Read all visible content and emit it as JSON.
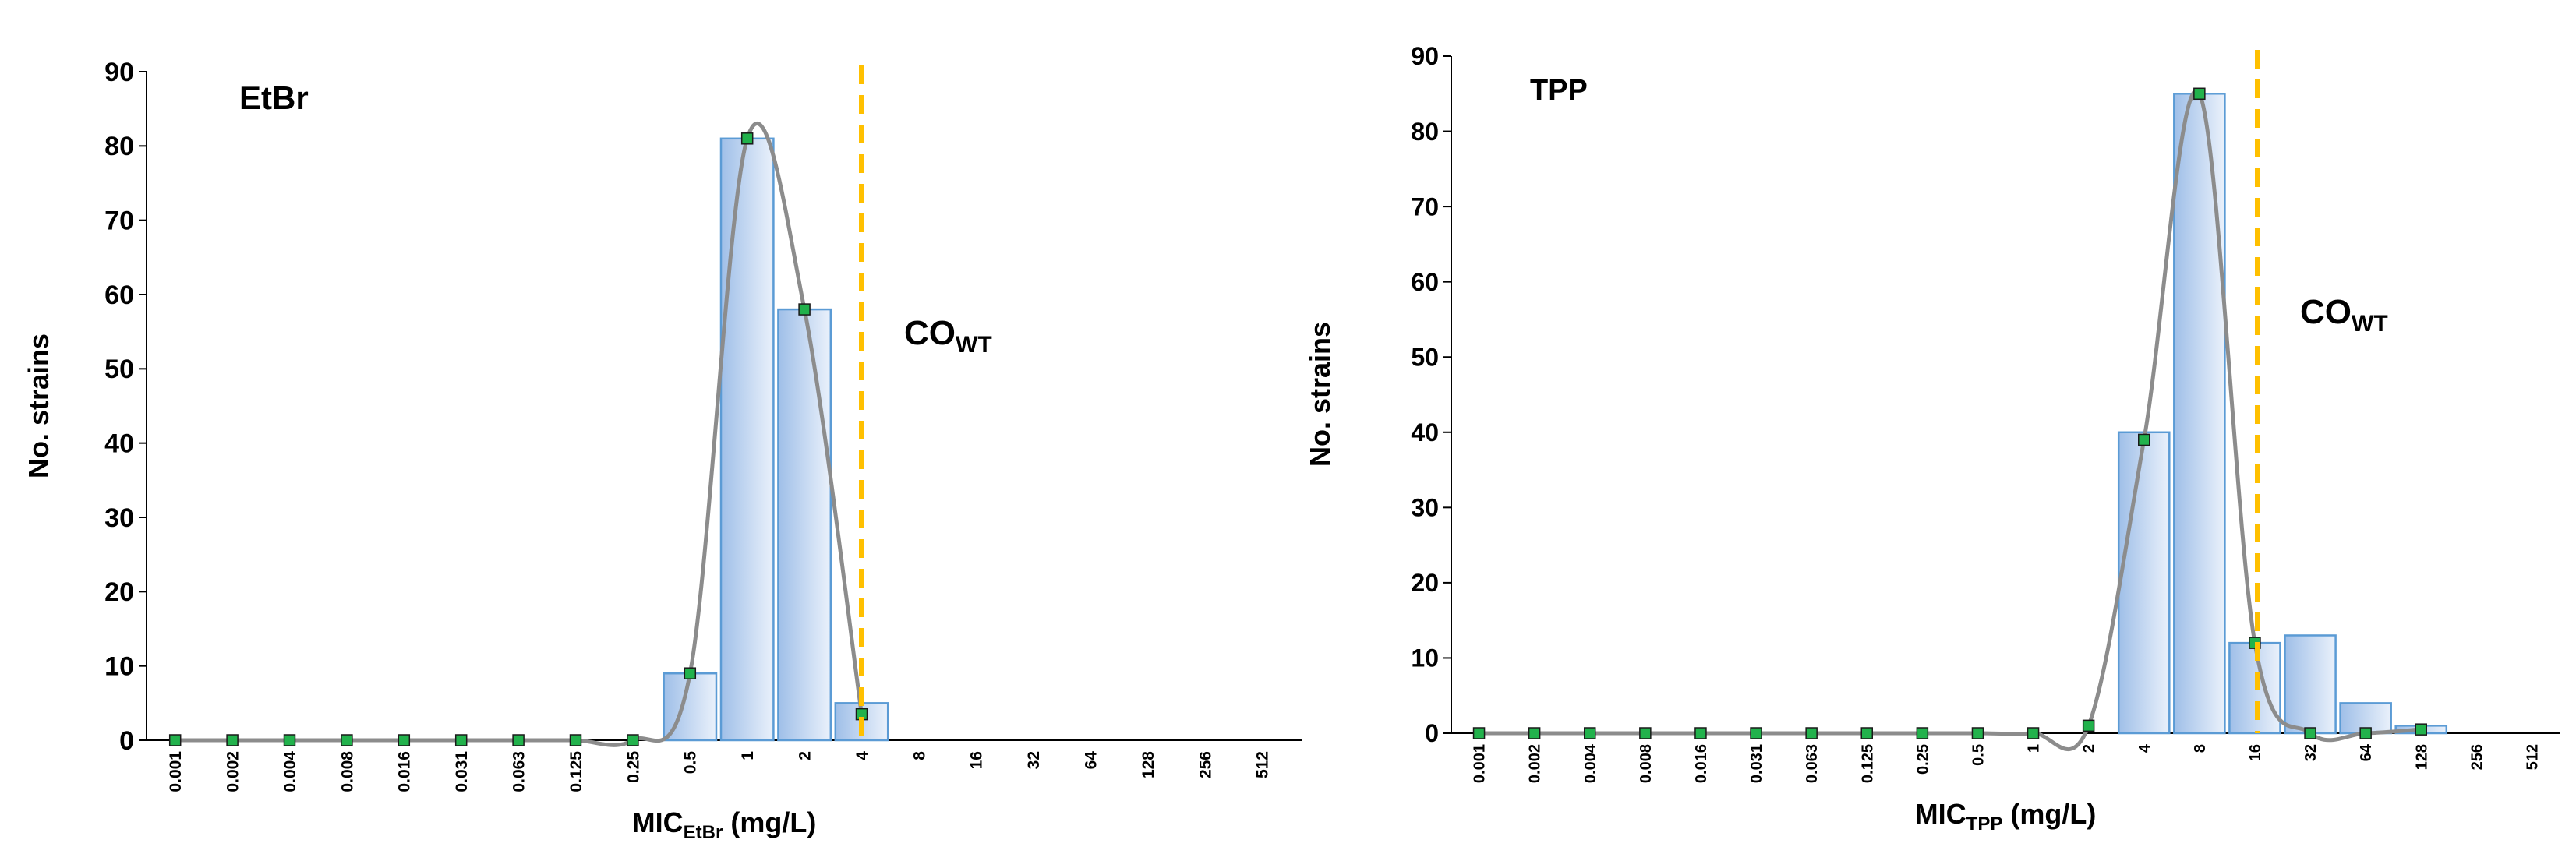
{
  "chart_data": [
    {
      "type": "bar",
      "title": "EtBr",
      "xlabel_main": "MIC",
      "xlabel_sub": "EtBr",
      "xlabel_tail": " (mg/L)",
      "ylabel": "No. strains",
      "ylim": [
        0,
        90
      ],
      "yticks": [
        0,
        10,
        20,
        30,
        40,
        50,
        60,
        70,
        80,
        90
      ],
      "categories": [
        "0.001",
        "0.002",
        "0.004",
        "0.008",
        "0.016",
        "0.031",
        "0.063",
        "0.125",
        "0.25",
        "0.5",
        "1",
        "2",
        "4",
        "8",
        "16",
        "32",
        "64",
        "128",
        "256",
        "512"
      ],
      "series": [
        {
          "name": "No. strains",
          "values": [
            0,
            0,
            0,
            0,
            0,
            0,
            0,
            0,
            0,
            9,
            81,
            58,
            5,
            0,
            0,
            0,
            0,
            0,
            0,
            0
          ]
        },
        {
          "name": "Fitted distribution",
          "values": [
            0,
            0,
            0,
            0,
            0,
            0,
            0,
            0,
            0,
            9,
            81,
            58,
            3.5,
            null,
            null,
            null,
            null,
            null,
            null,
            null
          ]
        }
      ],
      "cutoff": {
        "label_main": "CO",
        "label_sub": "WT",
        "position_category_index": 12.5
      },
      "colors": {
        "bar_fill_dark": "#9fbfe8",
        "bar_fill_light": "#e6effa",
        "bar_stroke": "#5b9bd5",
        "curve": "#8c8c8c",
        "marker": "#22b24c",
        "cutoff": "#ffc000"
      },
      "grid": false
    },
    {
      "type": "bar",
      "title": "TPP",
      "xlabel_main": "MIC",
      "xlabel_sub": "TPP",
      "xlabel_tail": " (mg/L)",
      "ylabel": "No. strains",
      "ylim": [
        0,
        90
      ],
      "yticks": [
        0,
        10,
        20,
        30,
        40,
        50,
        60,
        70,
        80,
        90
      ],
      "categories": [
        "0.001",
        "0.002",
        "0.004",
        "0.008",
        "0.016",
        "0.031",
        "0.063",
        "0.125",
        "0.25",
        "0.5",
        "1",
        "2",
        "4",
        "8",
        "16",
        "32",
        "64",
        "128",
        "256",
        "512"
      ],
      "series": [
        {
          "name": "No. strains",
          "values": [
            0,
            0,
            0,
            0,
            0,
            0,
            0,
            0,
            0,
            0,
            0,
            0,
            40,
            85,
            12,
            13,
            4,
            1,
            0,
            0
          ]
        },
        {
          "name": "Fitted distribution",
          "values": [
            0,
            0,
            0,
            0,
            0,
            0,
            0,
            0,
            0,
            0,
            0,
            1,
            39,
            85,
            12,
            0,
            0,
            0.5,
            null,
            null
          ]
        }
      ],
      "cutoff": {
        "label_main": "CO",
        "label_sub": "WT",
        "position_category_index": 14.55
      },
      "colors": {
        "bar_fill_dark": "#9fbfe8",
        "bar_fill_light": "#e6effa",
        "bar_stroke": "#5b9bd5",
        "curve": "#8c8c8c",
        "marker": "#22b24c",
        "cutoff": "#ffc000"
      },
      "grid": false
    }
  ]
}
